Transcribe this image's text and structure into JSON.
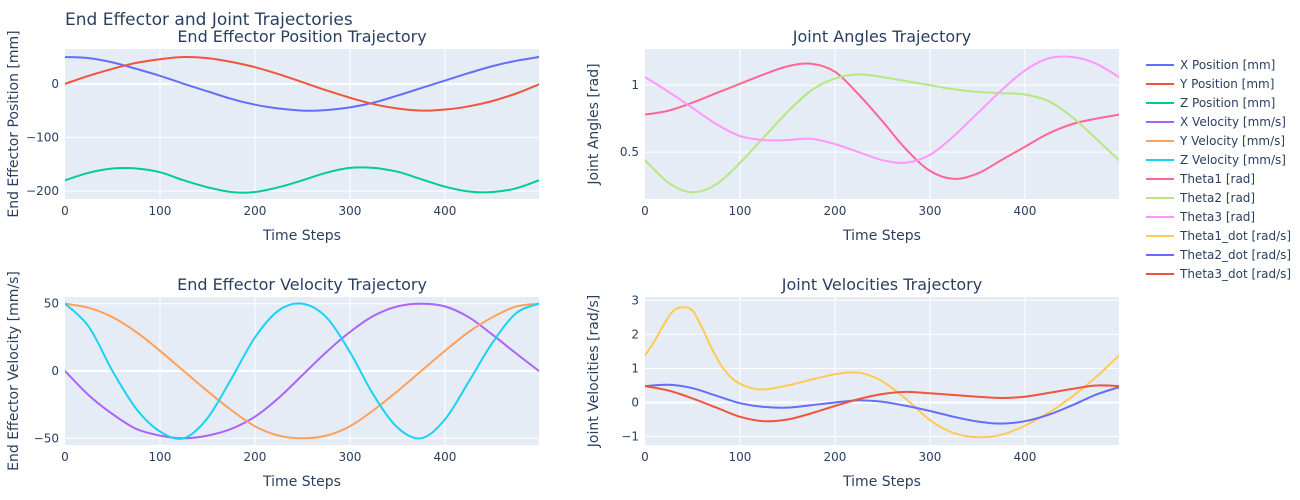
{
  "figure_title": "End Effector and Joint Trajectories",
  "legend": [
    {
      "label": "X Position [mm]",
      "color": "#636efa"
    },
    {
      "label": "Y Position [mm]",
      "color": "#ef553b"
    },
    {
      "label": "Z Position [mm]",
      "color": "#00cc96"
    },
    {
      "label": "X Velocity [mm/s]",
      "color": "#ab63fa"
    },
    {
      "label": "Y Velocity [mm/s]",
      "color": "#ffa15a"
    },
    {
      "label": "Z Velocity [mm/s]",
      "color": "#19d3f3"
    },
    {
      "label": "Theta1 [rad]",
      "color": "#ff6692"
    },
    {
      "label": "Theta2 [rad]",
      "color": "#b6e880"
    },
    {
      "label": "Theta3 [rad]",
      "color": "#ff97ff"
    },
    {
      "label": "Theta1_dot [rad/s]",
      "color": "#fecb52"
    },
    {
      "label": "Theta2_dot [rad/s]",
      "color": "#636efa"
    },
    {
      "label": "Theta3_dot [rad/s]",
      "color": "#ef553b"
    }
  ],
  "chart_data": [
    {
      "type": "line",
      "title": "End Effector Position Trajectory",
      "xlabel": "Time Steps",
      "ylabel": "End Effector Position [mm]",
      "xlim": [
        0,
        499
      ],
      "ylim": [
        -215,
        65
      ],
      "xticks": [
        0,
        100,
        200,
        300,
        400
      ],
      "yticks": [
        -200,
        -100,
        0
      ],
      "grid": true,
      "series": [
        {
          "name": "X Position [mm]",
          "color": "#636efa",
          "x": [
            0,
            25,
            50,
            75,
            100,
            125,
            150,
            175,
            200,
            225,
            250,
            275,
            300,
            325,
            350,
            375,
            400,
            425,
            450,
            475,
            499
          ],
          "y": [
            50,
            48,
            40,
            28,
            15,
            0,
            -14,
            -28,
            -39,
            -46,
            -50,
            -49,
            -44,
            -35,
            -22,
            -8,
            6,
            20,
            33,
            43,
            50
          ]
        },
        {
          "name": "Y Position [mm]",
          "color": "#ef553b",
          "x": [
            0,
            25,
            50,
            75,
            100,
            125,
            150,
            175,
            200,
            225,
            250,
            275,
            300,
            325,
            350,
            375,
            400,
            425,
            450,
            475,
            499
          ],
          "y": [
            0,
            15,
            28,
            39,
            46,
            50,
            48,
            41,
            31,
            18,
            3,
            -12,
            -26,
            -38,
            -46,
            -50,
            -48,
            -42,
            -32,
            -18,
            -1
          ]
        },
        {
          "name": "Z Position [mm]",
          "color": "#00cc96",
          "x": [
            0,
            25,
            50,
            75,
            100,
            125,
            150,
            175,
            200,
            225,
            250,
            275,
            300,
            325,
            350,
            375,
            400,
            425,
            450,
            475,
            499
          ],
          "y": [
            -180,
            -166,
            -158,
            -158,
            -165,
            -180,
            -193,
            -202,
            -202,
            -193,
            -180,
            -166,
            -157,
            -157,
            -164,
            -178,
            -192,
            -201,
            -202,
            -195,
            -180
          ]
        }
      ]
    },
    {
      "type": "line",
      "title": "Joint Angles Trajectory",
      "xlabel": "Time Steps",
      "ylabel": "Joint Angles [rad]",
      "xlim": [
        0,
        499
      ],
      "ylim": [
        0.15,
        1.27
      ],
      "xticks": [
        0,
        100,
        200,
        300,
        400
      ],
      "yticks": [
        0.5,
        1
      ],
      "yticklabels": [
        "0.5",
        "1"
      ],
      "grid": true,
      "series": [
        {
          "name": "Theta1 [rad]",
          "color": "#ff6692",
          "x": [
            0,
            25,
            50,
            75,
            100,
            125,
            150,
            175,
            200,
            225,
            250,
            275,
            300,
            325,
            350,
            375,
            400,
            425,
            450,
            475,
            499
          ],
          "y": [
            0.78,
            0.81,
            0.87,
            0.94,
            1.01,
            1.08,
            1.14,
            1.16,
            1.1,
            0.93,
            0.73,
            0.52,
            0.36,
            0.3,
            0.34,
            0.44,
            0.54,
            0.64,
            0.71,
            0.75,
            0.78
          ]
        },
        {
          "name": "Theta2 [rad]",
          "color": "#b6e880",
          "x": [
            0,
            25,
            50,
            75,
            100,
            125,
            150,
            175,
            200,
            225,
            250,
            275,
            300,
            325,
            350,
            375,
            400,
            425,
            450,
            475,
            499
          ],
          "y": [
            0.44,
            0.27,
            0.2,
            0.26,
            0.42,
            0.61,
            0.8,
            0.96,
            1.05,
            1.08,
            1.06,
            1.03,
            1.0,
            0.97,
            0.95,
            0.94,
            0.93,
            0.88,
            0.76,
            0.6,
            0.44
          ]
        },
        {
          "name": "Theta3 [rad]",
          "color": "#ff97ff",
          "x": [
            0,
            25,
            50,
            75,
            100,
            125,
            150,
            175,
            200,
            225,
            250,
            275,
            300,
            325,
            350,
            375,
            400,
            425,
            450,
            475,
            499
          ],
          "y": [
            1.06,
            0.95,
            0.83,
            0.71,
            0.62,
            0.59,
            0.59,
            0.6,
            0.56,
            0.5,
            0.44,
            0.42,
            0.48,
            0.62,
            0.79,
            0.96,
            1.11,
            1.2,
            1.21,
            1.16,
            1.06
          ]
        }
      ]
    },
    {
      "type": "line",
      "title": "End Effector Velocity Trajectory",
      "xlabel": "Time Steps",
      "ylabel": "End Effector Velocity [mm/s]",
      "xlim": [
        0,
        499
      ],
      "ylim": [
        -55,
        55
      ],
      "xticks": [
        0,
        100,
        200,
        300,
        400
      ],
      "yticks": [
        -50,
        0,
        50
      ],
      "yticklabels": [
        "−50",
        "0",
        "50"
      ],
      "grid": true,
      "series": [
        {
          "name": "X Velocity [mm/s]",
          "color": "#ab63fa",
          "x": [
            0,
            25,
            50,
            75,
            100,
            125,
            150,
            175,
            200,
            225,
            250,
            275,
            300,
            325,
            350,
            375,
            400,
            425,
            450,
            475,
            499
          ],
          "y": [
            0,
            -18,
            -32,
            -43,
            -48,
            -50,
            -48,
            -43,
            -34,
            -20,
            -3,
            14,
            29,
            41,
            48,
            50,
            48,
            40,
            27,
            13,
            0
          ]
        },
        {
          "name": "Y Velocity [mm/s]",
          "color": "#ffa15a",
          "x": [
            0,
            25,
            50,
            75,
            100,
            125,
            150,
            175,
            200,
            225,
            250,
            275,
            300,
            325,
            350,
            375,
            400,
            425,
            450,
            475,
            499
          ],
          "y": [
            50,
            47,
            40,
            29,
            15,
            0,
            -15,
            -29,
            -41,
            -48,
            -50,
            -48,
            -41,
            -29,
            -15,
            0,
            15,
            29,
            40,
            48,
            50
          ]
        },
        {
          "name": "Z Velocity [mm/s]",
          "color": "#19d3f3",
          "x": [
            0,
            25,
            50,
            75,
            100,
            125,
            150,
            175,
            200,
            225,
            250,
            275,
            300,
            325,
            350,
            375,
            400,
            425,
            450,
            475,
            499
          ],
          "y": [
            50,
            33,
            0,
            -28,
            -45,
            -50,
            -35,
            -6,
            25,
            45,
            50,
            40,
            14,
            -18,
            -42,
            -50,
            -36,
            -8,
            21,
            43,
            50
          ]
        }
      ]
    },
    {
      "type": "line",
      "title": "Joint Velocities Trajectory",
      "xlabel": "Time Steps",
      "ylabel": "Joint Velocities [rad/s]",
      "xlim": [
        0,
        499
      ],
      "ylim": [
        -1.25,
        3.1
      ],
      "xticks": [
        0,
        100,
        200,
        300,
        400
      ],
      "yticks": [
        -1,
        0,
        1,
        2,
        3
      ],
      "yticklabels": [
        "−1",
        "0",
        "1",
        "2",
        "3"
      ],
      "grid": true,
      "series": [
        {
          "name": "Theta1_dot [rad/s]",
          "color": "#fecb52",
          "x": [
            0,
            10,
            20,
            30,
            40,
            50,
            60,
            70,
            80,
            90,
            100,
            110,
            125,
            150,
            175,
            200,
            215,
            230,
            250,
            275,
            300,
            325,
            350,
            375,
            400,
            425,
            450,
            475,
            499
          ],
          "y": [
            1.38,
            1.8,
            2.3,
            2.7,
            2.8,
            2.7,
            2.2,
            1.6,
            1.1,
            0.75,
            0.55,
            0.44,
            0.38,
            0.5,
            0.67,
            0.83,
            0.88,
            0.85,
            0.62,
            0.1,
            -0.52,
            -0.9,
            -1.02,
            -0.95,
            -0.68,
            -0.3,
            0.18,
            0.75,
            1.38
          ]
        },
        {
          "name": "Theta2_dot [rad/s]",
          "color": "#636efa",
          "x": [
            0,
            25,
            50,
            75,
            100,
            125,
            150,
            175,
            200,
            225,
            250,
            275,
            300,
            325,
            350,
            375,
            400,
            425,
            450,
            475,
            499
          ],
          "y": [
            0.48,
            0.52,
            0.42,
            0.2,
            -0.02,
            -0.13,
            -0.15,
            -0.08,
            0.0,
            0.06,
            0.02,
            -0.1,
            -0.25,
            -0.42,
            -0.56,
            -0.62,
            -0.55,
            -0.36,
            -0.08,
            0.23,
            0.45
          ]
        },
        {
          "name": "Theta3_dot [rad/s]",
          "color": "#ef553b",
          "x": [
            0,
            25,
            50,
            75,
            100,
            125,
            150,
            175,
            200,
            225,
            250,
            275,
            300,
            325,
            350,
            375,
            400,
            425,
            450,
            475,
            499
          ],
          "y": [
            0.48,
            0.35,
            0.12,
            -0.15,
            -0.42,
            -0.55,
            -0.5,
            -0.32,
            -0.1,
            0.1,
            0.25,
            0.31,
            0.27,
            0.22,
            0.17,
            0.13,
            0.17,
            0.28,
            0.4,
            0.5,
            0.48
          ]
        }
      ]
    }
  ]
}
